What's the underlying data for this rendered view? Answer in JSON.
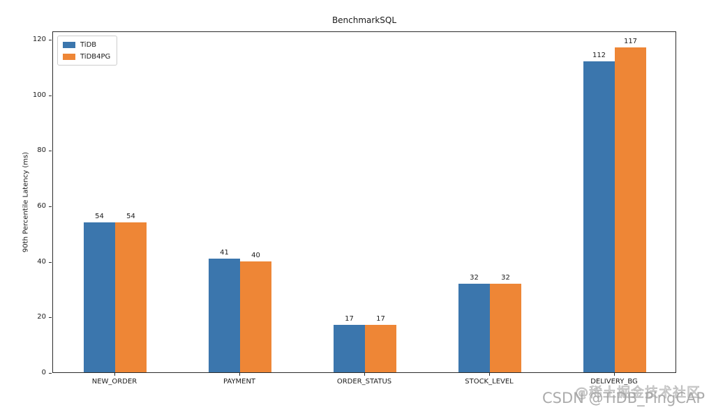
{
  "chart_data": {
    "type": "bar",
    "title": "BenchmarkSQL",
    "xlabel": "",
    "ylabel": "90th Percentile Latency (ms)",
    "categories": [
      "NEW_ORDER",
      "PAYMENT",
      "ORDER_STATUS",
      "STOCK_LEVEL",
      "DELIVERY_BG"
    ],
    "series": [
      {
        "name": "TiDB",
        "color": "#3b76ad",
        "values": [
          54,
          41,
          17,
          32,
          112
        ]
      },
      {
        "name": "TiDB4PG",
        "color": "#ee8636",
        "values": [
          54,
          40,
          17,
          32,
          117
        ]
      }
    ],
    "yticks": [
      0,
      20,
      40,
      60,
      80,
      100,
      120
    ],
    "ylim": [
      0,
      123
    ],
    "grid": false,
    "legend_position": "upper left",
    "bar_value_labels": true
  },
  "watermarks": {
    "juejin": "@稀土掘金技术社区",
    "csdn": "CSDN @TiDB_PingCAP"
  }
}
